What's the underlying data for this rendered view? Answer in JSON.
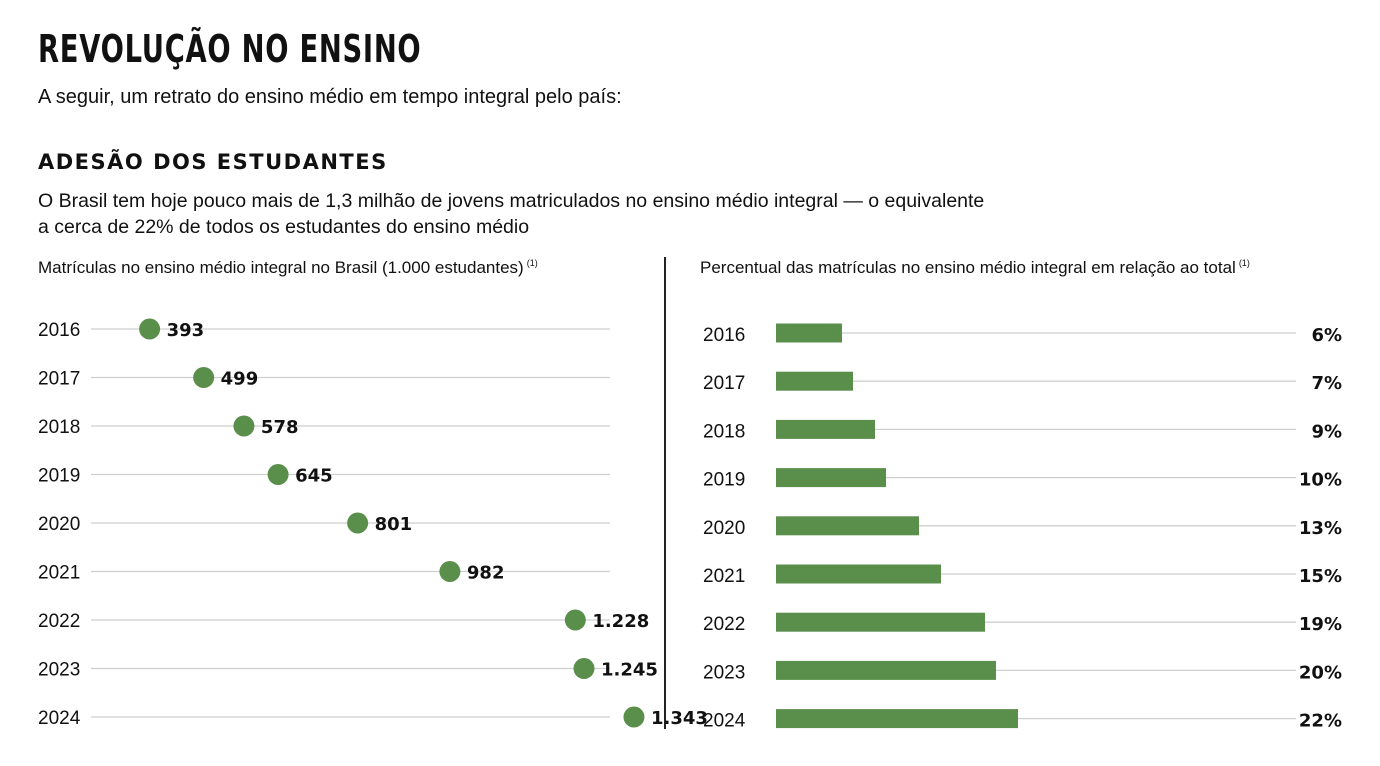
{
  "header": {
    "title": "REVOLUÇÃO NO ENSINO",
    "subtitle": "A seguir, um retrato do ensino médio em tempo integral pelo país:"
  },
  "section": {
    "title": "ADESÃO DOS ESTUDANTES",
    "description_line1": "O Brasil tem hoje pouco mais de 1,3 milhão de jovens matriculados no ensino médio integral — o equivalente",
    "description_line2": "a cerca de 22% de todos os estudantes do ensino médio"
  },
  "colors": {
    "accent": "#5a8f4b",
    "grid": "#cfcfcf",
    "text": "#111111"
  },
  "chart_data": [
    {
      "type": "scatter",
      "title": "Matrículas no ensino médio integral no Brasil (1.000 estudantes)",
      "footnote": "(1)",
      "categories": [
        "2016",
        "2017",
        "2018",
        "2019",
        "2020",
        "2021",
        "2022",
        "2023",
        "2024"
      ],
      "values": [
        393,
        499,
        578,
        645,
        801,
        982,
        1228,
        1245,
        1343
      ],
      "labels": [
        "393",
        "499",
        "578",
        "645",
        "801",
        "982",
        "1.228",
        "1.245",
        "1.343"
      ],
      "xlim": [
        280,
        1500
      ],
      "grid": true
    },
    {
      "type": "bar",
      "orientation": "horizontal",
      "title": "Percentual das matrículas no ensino médio integral em relação ao total",
      "footnote": "(1)",
      "categories": [
        "2016",
        "2017",
        "2018",
        "2019",
        "2020",
        "2021",
        "2022",
        "2023",
        "2024"
      ],
      "values": [
        6,
        7,
        9,
        10,
        13,
        15,
        19,
        20,
        22
      ],
      "labels": [
        "6%",
        "7%",
        "9%",
        "10%",
        "13%",
        "15%",
        "19%",
        "20%",
        "22%"
      ],
      "unit": "%",
      "grid": true
    }
  ]
}
